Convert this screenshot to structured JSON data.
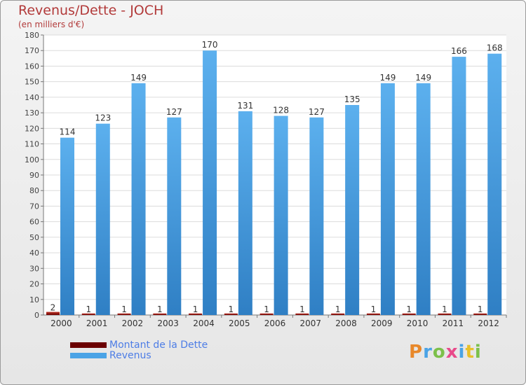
{
  "chart_data": {
    "type": "bar",
    "title": "Revenus/Dette - JOCH",
    "subtitle": "(en milliers d'€)",
    "categories": [
      "2000",
      "2001",
      "2002",
      "2003",
      "2004",
      "2005",
      "2006",
      "2007",
      "2008",
      "2009",
      "2010",
      "2011",
      "2012"
    ],
    "series": [
      {
        "name": "Montant de la Dette",
        "color": "#6b0000",
        "values": [
          2,
          1,
          1,
          1,
          1,
          1,
          1,
          1,
          1,
          1,
          1,
          1,
          1
        ]
      },
      {
        "name": "Revenus",
        "color": "#4aa3e6",
        "values": [
          114,
          123,
          149,
          127,
          170,
          131,
          128,
          127,
          135,
          149,
          149,
          166,
          168
        ]
      }
    ],
    "ylim": [
      0,
      180
    ],
    "ytick_step": 10,
    "grid": true,
    "legend_position": "bottom-left"
  },
  "logo": {
    "letters": [
      "P",
      "r",
      "o",
      "x",
      "i",
      "t",
      "i"
    ],
    "colors": [
      "#e8882a",
      "#4aa3e6",
      "#7cc04a",
      "#e84a8a",
      "#4aa3e6",
      "#e8c02a",
      "#7cc04a"
    ]
  }
}
